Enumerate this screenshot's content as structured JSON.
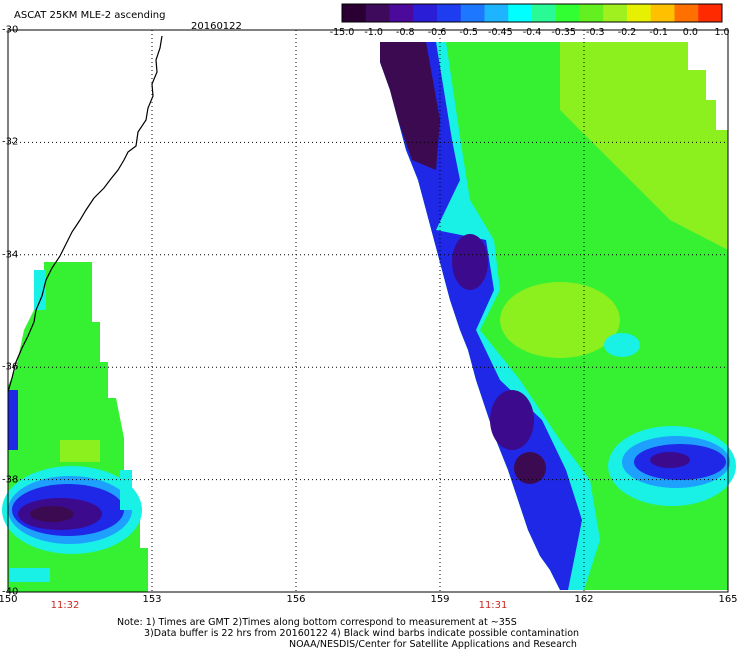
{
  "header": {
    "title": "ASCAT 25KM MLE-2 ascending",
    "date": "20160122"
  },
  "colorbar": {
    "ticks": [
      "-15.0",
      "-1.0",
      "-0.8",
      "-0.6",
      "-0.5",
      "-0.45",
      "-0.4",
      "-0.35",
      "-0.3",
      "-0.2",
      "-0.1",
      "0.0",
      "1.0"
    ],
    "colors": [
      "#2a0033",
      "#3d0a5c",
      "#4b0a9c",
      "#2a1ed6",
      "#1e3cf0",
      "#1e78ff",
      "#1eb4ff",
      "#00ffff",
      "#2afa96",
      "#32ff32",
      "#64f020",
      "#a0f020",
      "#e6f000",
      "#ffc000",
      "#ff7000",
      "#ff2a00"
    ]
  },
  "axes": {
    "x_ticks": [
      "150",
      "153",
      "156",
      "159",
      "162",
      "165"
    ],
    "y_ticks": [
      "-30",
      "-32",
      "-34",
      "-36",
      "-38",
      "-40"
    ],
    "lon_range": [
      150,
      165
    ],
    "lat_range": [
      -40,
      -30
    ]
  },
  "swaths": {
    "left_time": "11:32",
    "right_time": "11:31"
  },
  "colors": {
    "green": "#36f032",
    "lime": "#8cf01e",
    "cyan": "#19f0e6",
    "sky": "#1ea0ff",
    "blue": "#1e28e6",
    "purple": "#3c0a8c",
    "dark_purple": "#3c0a50",
    "time_red": "#c8281e"
  },
  "footer": {
    "note_line1": "Note: 1) Times are GMT 2)Times along bottom correspond to measurement at ~35S",
    "note_line2": "3)Data buffer is 22 hrs from 20160122 4) Black wind barbs indicate possible contamination",
    "note_line3": "NOAA/NESDIS/Center for Satellite Applications and Research"
  }
}
